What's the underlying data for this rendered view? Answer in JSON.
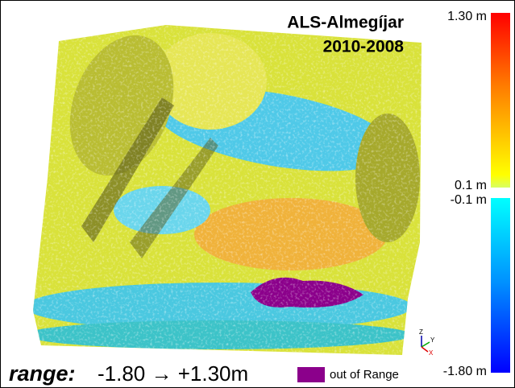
{
  "title": {
    "line1": "ALS-Almegíjar",
    "line2": "2010-2008"
  },
  "colorbar": {
    "labels": [
      "1.30 m",
      "0.1 m",
      "-0.1 m",
      "-1.80 m"
    ]
  },
  "axes_triad": {
    "z": "Z",
    "y": "Y",
    "x": "X"
  },
  "footer": {
    "range_label": "range:",
    "range_value": "-1.80 → +1.30m",
    "out_of_range": "out of Range"
  }
}
